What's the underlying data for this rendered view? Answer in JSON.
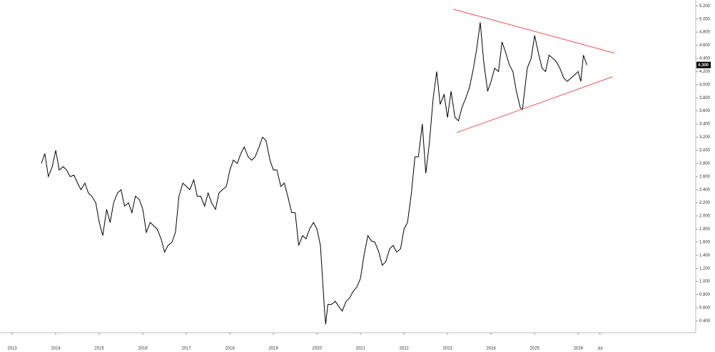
{
  "chart_data": {
    "type": "line",
    "color": "#000000",
    "x": [
      2013.67,
      2013.75,
      2013.83,
      2013.92,
      2014.0,
      2014.08,
      2014.17,
      2014.25,
      2014.33,
      2014.42,
      2014.5,
      2014.58,
      2014.67,
      2014.75,
      2014.83,
      2014.92,
      2015.0,
      2015.08,
      2015.17,
      2015.25,
      2015.33,
      2015.42,
      2015.5,
      2015.58,
      2015.67,
      2015.75,
      2015.83,
      2015.92,
      2016.0,
      2016.08,
      2016.17,
      2016.25,
      2016.33,
      2016.42,
      2016.5,
      2016.58,
      2016.67,
      2016.75,
      2016.83,
      2016.92,
      2017.0,
      2017.08,
      2017.17,
      2017.25,
      2017.33,
      2017.42,
      2017.5,
      2017.58,
      2017.67,
      2017.75,
      2017.83,
      2017.92,
      2018.0,
      2018.08,
      2018.17,
      2018.25,
      2018.33,
      2018.42,
      2018.5,
      2018.58,
      2018.67,
      2018.75,
      2018.83,
      2018.92,
      2019.0,
      2019.08,
      2019.17,
      2019.25,
      2019.33,
      2019.42,
      2019.5,
      2019.58,
      2019.67,
      2019.75,
      2019.83,
      2019.92,
      2020.0,
      2020.08,
      2020.17,
      2020.2,
      2020.25,
      2020.33,
      2020.42,
      2020.5,
      2020.58,
      2020.67,
      2020.75,
      2020.83,
      2020.92,
      2021.0,
      2021.08,
      2021.17,
      2021.25,
      2021.33,
      2021.42,
      2021.5,
      2021.58,
      2021.67,
      2021.75,
      2021.83,
      2021.92,
      2022.0,
      2022.08,
      2022.17,
      2022.25,
      2022.33,
      2022.42,
      2022.5,
      2022.58,
      2022.67,
      2022.75,
      2022.83,
      2022.92,
      2023.0,
      2023.08,
      2023.17,
      2023.25,
      2023.33,
      2023.42,
      2023.5,
      2023.58,
      2023.67,
      2023.75,
      2023.83,
      2023.92,
      2024.0,
      2024.08,
      2024.17,
      2024.25,
      2024.33,
      2024.42,
      2024.5,
      2024.58,
      2024.67,
      2024.72,
      2024.83,
      2024.92,
      2025.0,
      2025.08,
      2025.17,
      2025.25,
      2025.33,
      2025.42,
      2025.5,
      2025.58,
      2025.67,
      2025.75,
      2025.83,
      2025.92,
      2026.0,
      2026.06,
      2026.12,
      2026.2
    ],
    "values": [
      2.8,
      2.95,
      2.6,
      2.75,
      3.0,
      2.7,
      2.75,
      2.7,
      2.6,
      2.62,
      2.5,
      2.4,
      2.5,
      2.35,
      2.3,
      2.2,
      1.9,
      1.7,
      2.1,
      1.9,
      2.2,
      2.35,
      2.4,
      2.15,
      2.2,
      2.05,
      2.3,
      2.25,
      2.1,
      1.75,
      1.9,
      1.85,
      1.8,
      1.65,
      1.45,
      1.55,
      1.6,
      1.75,
      2.3,
      2.5,
      2.45,
      2.4,
      2.55,
      2.3,
      2.3,
      2.15,
      2.35,
      2.2,
      2.1,
      2.35,
      2.4,
      2.45,
      2.7,
      2.85,
      2.8,
      2.95,
      3.05,
      2.9,
      2.85,
      2.9,
      3.05,
      3.2,
      3.15,
      2.85,
      2.7,
      2.7,
      2.45,
      2.5,
      2.3,
      2.05,
      2.05,
      1.55,
      1.7,
      1.65,
      1.8,
      1.9,
      1.8,
      1.55,
      0.6,
      0.35,
      0.65,
      0.65,
      0.7,
      0.62,
      0.55,
      0.7,
      0.75,
      0.85,
      0.92,
      1.05,
      1.4,
      1.7,
      1.62,
      1.6,
      1.45,
      1.25,
      1.3,
      1.5,
      1.55,
      1.45,
      1.5,
      1.8,
      1.9,
      2.35,
      2.9,
      2.9,
      3.4,
      2.65,
      3.1,
      3.8,
      4.2,
      3.7,
      3.85,
      3.5,
      3.9,
      3.5,
      3.45,
      3.65,
      3.8,
      3.95,
      4.2,
      4.55,
      4.95,
      4.35,
      3.9,
      4.05,
      4.25,
      4.2,
      4.65,
      4.5,
      4.3,
      4.2,
      3.9,
      3.65,
      3.62,
      4.25,
      4.4,
      4.75,
      4.5,
      4.25,
      4.2,
      4.45,
      4.4,
      4.35,
      4.25,
      4.1,
      4.05,
      4.1,
      4.15,
      4.2,
      4.05,
      4.45,
      4.3
    ],
    "xlim": [
      2012.72,
      2028.7
    ],
    "ylim": [
      0.22,
      5.29
    ],
    "xticks": [
      2013,
      2014,
      2015,
      2016,
      2017,
      2018,
      2019,
      2020,
      2021,
      2022,
      2023,
      2024,
      2025,
      2026,
      {
        "value": 2026.5,
        "label": "Jul"
      }
    ],
    "yticks": [
      {
        "value": 0.4,
        "label": "0.400"
      },
      {
        "value": 0.6,
        "label": "0.600"
      },
      {
        "value": 0.8,
        "label": "0.800"
      },
      {
        "value": 1.0,
        "label": "1.000"
      },
      {
        "value": 1.2,
        "label": "1.200"
      },
      {
        "value": 1.4,
        "label": "1.400"
      },
      {
        "value": 1.6,
        "label": "1.600"
      },
      {
        "value": 1.8,
        "label": "1.800"
      },
      {
        "value": 2.0,
        "label": "2.000"
      },
      {
        "value": 2.2,
        "label": "2.200"
      },
      {
        "value": 2.4,
        "label": "2.400"
      },
      {
        "value": 2.6,
        "label": "2.600"
      },
      {
        "value": 2.8,
        "label": "2.800"
      },
      {
        "value": 3.0,
        "label": "3.000"
      },
      {
        "value": 3.2,
        "label": "3.200"
      },
      {
        "value": 3.4,
        "label": "3.400"
      },
      {
        "value": 3.6,
        "label": "3.600"
      },
      {
        "value": 3.8,
        "label": "3.800"
      },
      {
        "value": 4.0,
        "label": "4.000"
      },
      {
        "value": 4.2,
        "label": "4.200"
      },
      {
        "value": 4.4,
        "label": "4.400"
      },
      {
        "value": 4.6,
        "label": "4.600"
      },
      {
        "value": 4.8,
        "label": "4.800"
      },
      {
        "value": 5.0,
        "label": "5.000"
      },
      {
        "value": 5.2,
        "label": "5.200"
      }
    ],
    "trendlines": [
      {
        "color": "#f05050",
        "x": [
          2023.13,
          2026.84
        ],
        "values": [
          5.15,
          4.48
        ]
      },
      {
        "color": "#f05050",
        "x": [
          2023.21,
          2026.79
        ],
        "values": [
          3.27,
          4.12
        ]
      }
    ],
    "last_price": {
      "value": 4.3,
      "label": "4.300"
    }
  }
}
